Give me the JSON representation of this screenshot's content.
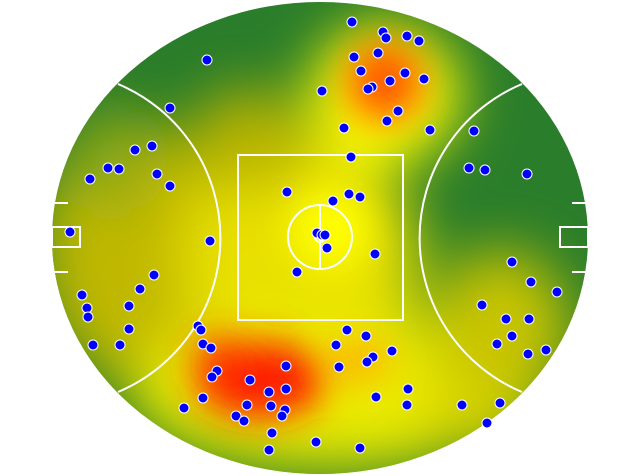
{
  "chart_data": {
    "type": "heatmap",
    "subtype": "scatter-over-density",
    "title": "",
    "xlabel": "",
    "ylabel": "",
    "units": "m",
    "field_shape": "oval",
    "markings": [
      "centre-square",
      "centre-circle",
      "50m-arcs",
      "goal-squares"
    ],
    "grid": false,
    "legend": "none",
    "colors": {
      "low": "#1f7a1f",
      "mid": "#ffff00",
      "high": "#ff0000",
      "point_fill": "#0000ff",
      "point_stroke": "#ffffff",
      "lines": "#ffffff"
    },
    "points": [
      [
        9.6,
        64.8
      ],
      [
        18.9,
        61.8
      ],
      [
        19.8,
        60
      ],
      [
        26.1,
        60.6
      ],
      [
        29.7,
        59.1
      ],
      [
        -33.9,
        53.4
      ],
      [
        10.2,
        54.3
      ],
      [
        17.4,
        55.5
      ],
      [
        12.3,
        50.1
      ],
      [
        25.5,
        49.5
      ],
      [
        21,
        47.1
      ],
      [
        31.2,
        47.7
      ],
      [
        15.6,
        45.3
      ],
      [
        14.4,
        44.7
      ],
      [
        0.6,
        44.1
      ],
      [
        -45,
        39
      ],
      [
        23.4,
        38.1
      ],
      [
        20.1,
        35.1
      ],
      [
        7.2,
        33
      ],
      [
        33,
        32.4
      ],
      [
        46.2,
        32.1
      ],
      [
        -55.5,
        26.4
      ],
      [
        -50.4,
        27.6
      ],
      [
        9.3,
        24.3
      ],
      [
        -63.6,
        21
      ],
      [
        -60.3,
        20.7
      ],
      [
        -48.9,
        19.2
      ],
      [
        44.7,
        21
      ],
      [
        49.5,
        20.4
      ],
      [
        62.1,
        19.2
      ],
      [
        -69,
        17.7
      ],
      [
        -45,
        15.6
      ],
      [
        -9.9,
        13.8
      ],
      [
        8.7,
        13.2
      ],
      [
        12,
        12.3
      ],
      [
        3.9,
        11.1
      ],
      [
        -75,
        1.8
      ],
      [
        -33,
        -0.9
      ],
      [
        -0.9,
        1.5
      ],
      [
        0.6,
        0.9
      ],
      [
        1.5,
        0.9
      ],
      [
        2.1,
        -3
      ],
      [
        16.5,
        -4.8
      ],
      [
        57.6,
        -7.2
      ],
      [
        -6.9,
        -10.2
      ],
      [
        -49.8,
        -11.1
      ],
      [
        -54,
        -15.3
      ],
      [
        63.3,
        -13.2
      ],
      [
        -71.4,
        -17.1
      ],
      [
        71.1,
        -16.2
      ],
      [
        -57.3,
        -20.4
      ],
      [
        -69.9,
        -21
      ],
      [
        -69.6,
        -23.7
      ],
      [
        48.6,
        -20.1
      ],
      [
        55.8,
        -24.3
      ],
      [
        62.7,
        -24.3
      ],
      [
        -57.3,
        -27.3
      ],
      [
        -36.6,
        -26.4
      ],
      [
        -35.7,
        -27.6
      ],
      [
        8.1,
        -27.6
      ],
      [
        13.8,
        -29.4
      ],
      [
        57.6,
        -29.4
      ],
      [
        -68.1,
        -32.1
      ],
      [
        -60,
        -32.1
      ],
      [
        -35.1,
        -31.8
      ],
      [
        -32.7,
        -33
      ],
      [
        4.8,
        -32.1
      ],
      [
        53.1,
        -31.8
      ],
      [
        67.8,
        -33.6
      ],
      [
        62.4,
        -34.8
      ],
      [
        21.6,
        -33.9
      ],
      [
        15.9,
        -35.7
      ],
      [
        14.1,
        -37.2
      ],
      [
        -10.2,
        -38.4
      ],
      [
        5.7,
        -38.7
      ],
      [
        -30.9,
        -39.9
      ],
      [
        -32.4,
        -41.7
      ],
      [
        -21,
        -42.6
      ],
      [
        26.4,
        -45.3
      ],
      [
        -10.2,
        -45.3
      ],
      [
        -15.3,
        -46.2
      ],
      [
        16.8,
        -47.7
      ],
      [
        -35.1,
        -48
      ],
      [
        -40.8,
        -51
      ],
      [
        -21.9,
        -50.1
      ],
      [
        -14.7,
        -50.4
      ],
      [
        -10.5,
        -51.6
      ],
      [
        -11.4,
        -53.4
      ],
      [
        42.6,
        -50.1
      ],
      [
        26.1,
        -50.1
      ],
      [
        54,
        -49.5
      ],
      [
        -25.2,
        -53.4
      ],
      [
        -22.8,
        -54.9
      ],
      [
        50.1,
        -55.5
      ],
      [
        -14.4,
        -58.5
      ],
      [
        -1.2,
        -61.2
      ],
      [
        12,
        -63
      ],
      [
        -15.3,
        -63.6
      ]
    ]
  }
}
